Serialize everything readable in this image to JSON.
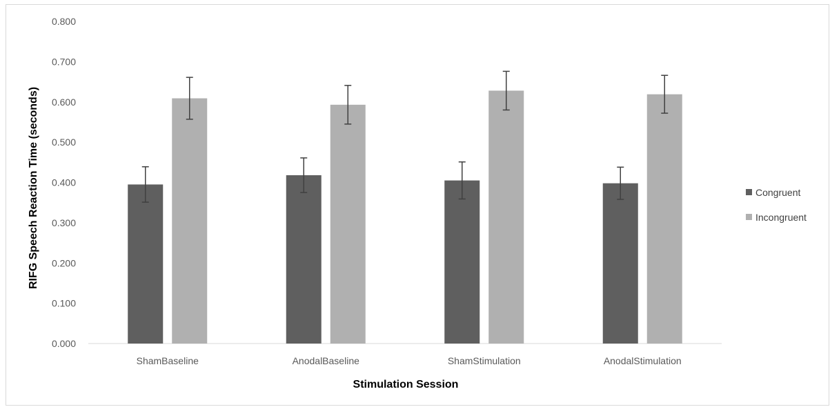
{
  "chart_data": {
    "type": "bar",
    "title": "",
    "xlabel": "Stimulation Session",
    "ylabel": "RIFG Speech Reaction Time (seconds)",
    "ylim": [
      0,
      0.8
    ],
    "yticks": [
      "0.000",
      "0.100",
      "0.200",
      "0.300",
      "0.400",
      "0.500",
      "0.600",
      "0.700",
      "0.800"
    ],
    "categories": [
      "ShamBaseline",
      "AnodalBaseline",
      "ShamStimulation",
      "AnodalStimulation"
    ],
    "series": [
      {
        "name": "Congruent",
        "color": "#5f5f5f",
        "values": [
          0.395,
          0.418,
          0.405,
          0.398
        ],
        "errors": [
          0.044,
          0.043,
          0.046,
          0.04
        ]
      },
      {
        "name": "Incongruent",
        "color": "#b0b0b0",
        "values": [
          0.609,
          0.593,
          0.628,
          0.619
        ],
        "errors": [
          0.052,
          0.048,
          0.048,
          0.047
        ]
      }
    ],
    "grid": false,
    "legend_position": "right"
  }
}
